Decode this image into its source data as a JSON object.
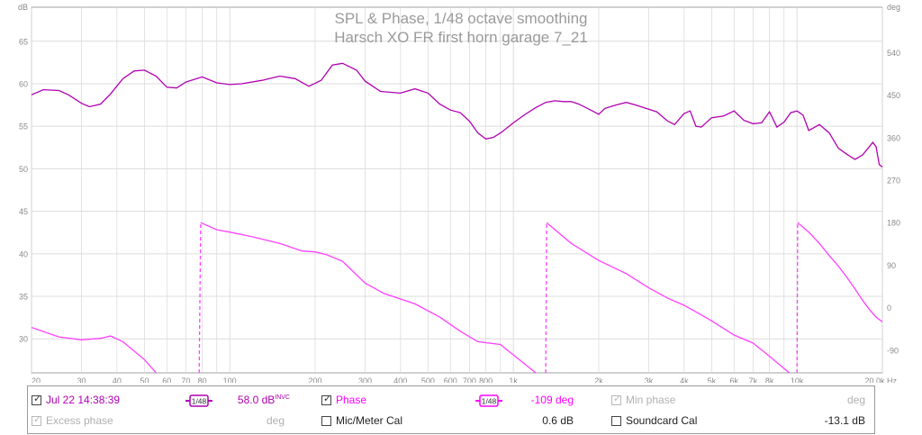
{
  "chart_data": {
    "type": "line",
    "title": "SPL & Phase, 1/48 octave smoothing",
    "subtitle": "Harsch XO FR first horn garage 7_21",
    "left_axis": {
      "unit": "dB",
      "range": [
        26,
        69
      ],
      "ticks": [
        30,
        35,
        40,
        45,
        50,
        55,
        60,
        65
      ]
    },
    "right_axis": {
      "unit": "deg",
      "range": [
        -138,
        636
      ],
      "ticks": [
        -90,
        0,
        90,
        180,
        270,
        360,
        450,
        540
      ]
    },
    "x_axis": {
      "scale": "log",
      "range": [
        20,
        20000
      ],
      "ticks": [
        20,
        30,
        40,
        50,
        60,
        70,
        80,
        100,
        200,
        300,
        400,
        500,
        600,
        700,
        800,
        1000,
        2000,
        3000,
        4000,
        5000,
        6000,
        7000,
        8000,
        10000,
        20000
      ],
      "tick_labels": [
        "20",
        "30",
        "40",
        "50",
        "60",
        "70",
        "80",
        "100",
        "200",
        "300",
        "400",
        "500",
        "600",
        "700",
        "800",
        "1k",
        "2k",
        "3k",
        "4k",
        "5k",
        "6k",
        "7k",
        "8k",
        "10k",
        "20.0k Hz"
      ]
    },
    "grid": true,
    "series": [
      {
        "name": "Jul 22 14:38:39",
        "axis": "left",
        "color": "#b000b0",
        "points": [
          [
            20,
            58.7
          ],
          [
            22,
            59.3
          ],
          [
            25,
            59.2
          ],
          [
            27,
            58.7
          ],
          [
            30,
            57.7
          ],
          [
            32,
            57.3
          ],
          [
            35,
            57.6
          ],
          [
            38,
            58.8
          ],
          [
            42,
            60.6
          ],
          [
            46,
            61.5
          ],
          [
            50,
            61.6
          ],
          [
            55,
            60.9
          ],
          [
            60,
            59.6
          ],
          [
            65,
            59.5
          ],
          [
            70,
            60.2
          ],
          [
            80,
            60.8
          ],
          [
            90,
            60.1
          ],
          [
            100,
            59.9
          ],
          [
            110,
            60.0
          ],
          [
            130,
            60.4
          ],
          [
            150,
            60.9
          ],
          [
            170,
            60.6
          ],
          [
            190,
            59.7
          ],
          [
            210,
            60.4
          ],
          [
            230,
            62.2
          ],
          [
            250,
            62.4
          ],
          [
            280,
            61.6
          ],
          [
            300,
            60.3
          ],
          [
            340,
            59.1
          ],
          [
            400,
            58.9
          ],
          [
            450,
            59.4
          ],
          [
            500,
            58.9
          ],
          [
            550,
            57.6
          ],
          [
            600,
            56.9
          ],
          [
            650,
            56.6
          ],
          [
            700,
            55.6
          ],
          [
            750,
            54.2
          ],
          [
            800,
            53.5
          ],
          [
            850,
            53.7
          ],
          [
            900,
            54.2
          ],
          [
            1000,
            55.4
          ],
          [
            1100,
            56.4
          ],
          [
            1200,
            57.2
          ],
          [
            1300,
            57.8
          ],
          [
            1400,
            58.0
          ],
          [
            1500,
            57.9
          ],
          [
            1600,
            57.9
          ],
          [
            1700,
            57.6
          ],
          [
            1800,
            57.2
          ],
          [
            1900,
            56.8
          ],
          [
            2000,
            56.4
          ],
          [
            2100,
            57.1
          ],
          [
            2300,
            57.5
          ],
          [
            2500,
            57.8
          ],
          [
            2700,
            57.5
          ],
          [
            3000,
            57.0
          ],
          [
            3200,
            56.7
          ],
          [
            3500,
            55.6
          ],
          [
            3700,
            55.2
          ],
          [
            4000,
            56.5
          ],
          [
            4200,
            56.8
          ],
          [
            4400,
            55.0
          ],
          [
            4600,
            54.9
          ],
          [
            5000,
            56.0
          ],
          [
            5500,
            56.2
          ],
          [
            6000,
            56.8
          ],
          [
            6500,
            55.7
          ],
          [
            7000,
            55.3
          ],
          [
            7500,
            55.4
          ],
          [
            8000,
            56.7
          ],
          [
            8500,
            54.9
          ],
          [
            9000,
            55.5
          ],
          [
            9500,
            56.6
          ],
          [
            10000,
            56.8
          ],
          [
            10500,
            56.3
          ],
          [
            11000,
            54.5
          ],
          [
            12000,
            55.2
          ],
          [
            13000,
            54.2
          ],
          [
            14000,
            52.4
          ],
          [
            15000,
            51.7
          ],
          [
            16000,
            51.1
          ],
          [
            17000,
            51.6
          ],
          [
            18000,
            52.6
          ],
          [
            18500,
            53.1
          ],
          [
            19000,
            52.6
          ],
          [
            19500,
            50.5
          ],
          [
            20000,
            50.2
          ]
        ]
      },
      {
        "name": "Phase",
        "axis": "right",
        "color": "#ff40ff",
        "dashed_wraps": true,
        "segments": [
          [
            [
              20,
              -42
            ],
            [
              25,
              -62
            ],
            [
              30,
              -68
            ],
            [
              35,
              -65
            ],
            [
              38,
              -60
            ],
            [
              42,
              -72
            ],
            [
              50,
              -110
            ],
            [
              55,
              -138
            ]
          ],
          [
            [
              78,
              -138
            ],
            [
              79,
              180
            ]
          ],
          [
            [
              79,
              180
            ],
            [
              90,
              165
            ],
            [
              100,
              160
            ],
            [
              120,
              150
            ],
            [
              150,
              136
            ],
            [
              180,
              120
            ],
            [
              200,
              118
            ],
            [
              220,
              112
            ],
            [
              250,
              98
            ],
            [
              300,
              52
            ],
            [
              350,
              30
            ],
            [
              450,
              8
            ],
            [
              550,
              -20
            ],
            [
              650,
              -50
            ],
            [
              750,
              -72
            ],
            [
              900,
              -78
            ],
            [
              1000,
              -100
            ],
            [
              1200,
              -138
            ]
          ],
          [
            [
              1300,
              -138
            ],
            [
              1310,
              180
            ]
          ],
          [
            [
              1310,
              180
            ],
            [
              1600,
              136
            ],
            [
              2000,
              100
            ],
            [
              2500,
              72
            ],
            [
              3000,
              42
            ],
            [
              3500,
              20
            ],
            [
              4000,
              5
            ],
            [
              4500,
              -12
            ],
            [
              5000,
              -28
            ],
            [
              6000,
              -58
            ],
            [
              7000,
              -75
            ],
            [
              8000,
              -103
            ],
            [
              9400,
              -138
            ]
          ],
          [
            [
              10000,
              -138
            ],
            [
              10050,
              180
            ]
          ],
          [
            [
              10050,
              180
            ],
            [
              11000,
              160
            ],
            [
              12000,
              136
            ],
            [
              13000,
              110
            ],
            [
              14000,
              88
            ],
            [
              15000,
              64
            ],
            [
              16000,
              40
            ],
            [
              17000,
              16
            ],
            [
              18000,
              -4
            ],
            [
              19000,
              -20
            ],
            [
              20000,
              -30
            ]
          ]
        ]
      }
    ]
  },
  "plot": {
    "background": "#ffffff",
    "grid_color": "#dcdcdc",
    "axis_color": "#a0a0a0",
    "text_color": "#8a8a8a",
    "left_unit_label": "dB",
    "right_unit_label": "deg"
  },
  "legend": {
    "row1": {
      "col1": {
        "checked": true,
        "enabled": true,
        "label": "Jul 22 14:38:39",
        "color": "#b000b0",
        "smoothing": "1/48",
        "value": "58.0 dB",
        "value_sup": "INVC"
      },
      "col2": {
        "checked": true,
        "enabled": true,
        "label": "Phase",
        "color": "#ff00ff",
        "smoothing": "1/48",
        "value": "-109 deg"
      },
      "col3": {
        "checked": true,
        "enabled": false,
        "label": "Min phase",
        "value": "deg"
      }
    },
    "row2": {
      "col1": {
        "checked": true,
        "enabled": false,
        "label": "Excess phase",
        "value": "deg"
      },
      "col2": {
        "checked": false,
        "enabled": true,
        "label": "Mic/Meter Cal",
        "value": "0.6 dB"
      },
      "col3": {
        "checked": false,
        "enabled": true,
        "label": "Soundcard Cal",
        "value": "-13.1 dB"
      }
    }
  }
}
